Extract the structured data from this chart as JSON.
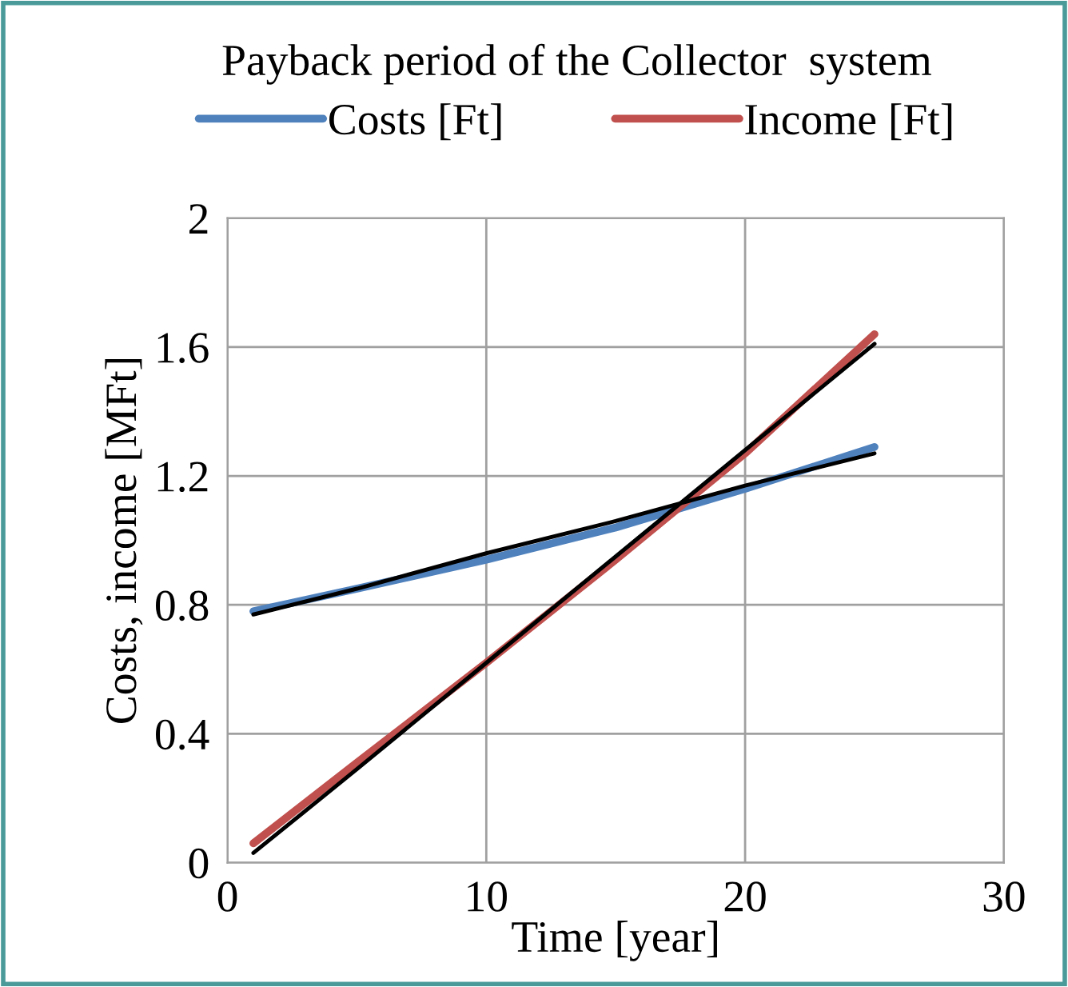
{
  "chart_data": {
    "type": "line",
    "title": "Payback period of the Collector  system",
    "xlabel": "Time [year]",
    "ylabel": "Costs, income [MFt]",
    "x": [
      1,
      5,
      10,
      15,
      20,
      25
    ],
    "series": [
      {
        "name": "Costs [Ft]",
        "color": "#4f81bd",
        "values": [
          0.78,
          0.85,
          0.94,
          1.04,
          1.16,
          1.29
        ]
      },
      {
        "name": "Income [Ft]",
        "color": "#c0504d",
        "values": [
          0.06,
          0.31,
          0.62,
          0.94,
          1.27,
          1.64
        ]
      },
      {
        "color": "#000000",
        "values": [
          0.77,
          0.85,
          0.96,
          1.06,
          1.17,
          1.27
        ]
      },
      {
        "color": "#000000",
        "values": [
          0.03,
          0.29,
          0.62,
          0.95,
          1.28,
          1.61
        ]
      }
    ],
    "xlim": [
      0,
      30
    ],
    "xticks": [
      0,
      10,
      20,
      30
    ],
    "ylim": [
      0,
      2
    ],
    "yticks": [
      0,
      0.4,
      0.8,
      1.2,
      1.6,
      2
    ],
    "grid": true,
    "legend": "top",
    "marker": "none",
    "line_style": "solid"
  }
}
